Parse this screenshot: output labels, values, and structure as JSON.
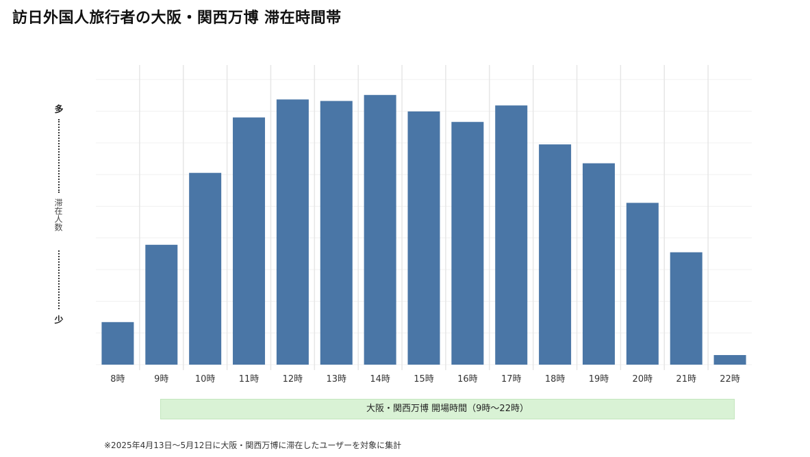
{
  "title": "訪日外国人旅行者の大阪・関西万博 滞在時間帯",
  "y_axis": {
    "high_label": "多",
    "middle_label": "滞在人数",
    "low_label": "少"
  },
  "hours_band_label": "大阪・関西万博 開場時間（9時〜22時）",
  "footnote": "※2025年4月13日〜5月12日に大阪・関西万博に滞在したユーザーを対象に集計",
  "colors": {
    "bar": "#4a76a6",
    "grid": "#e6e6e6",
    "band": "#d9f2d5"
  },
  "chart_data": {
    "type": "bar",
    "title": "訪日外国人旅行者の大阪・関西万博 滞在時間帯",
    "categories": [
      "8時",
      "9時",
      "10時",
      "11時",
      "12時",
      "13時",
      "14時",
      "15時",
      "16時",
      "17時",
      "18時",
      "19時",
      "20時",
      "21時",
      "22時"
    ],
    "values": [
      14.2,
      40,
      64,
      82.5,
      88.5,
      88,
      90,
      84.5,
      81,
      86.5,
      73.5,
      67.2,
      54,
      37.5,
      3.2
    ],
    "value_scale": "relative (0–100); y-axis has no numeric ticks",
    "ylabel": "滞在人数",
    "ylim": [
      0,
      100
    ],
    "grid": true,
    "legend": "none"
  }
}
